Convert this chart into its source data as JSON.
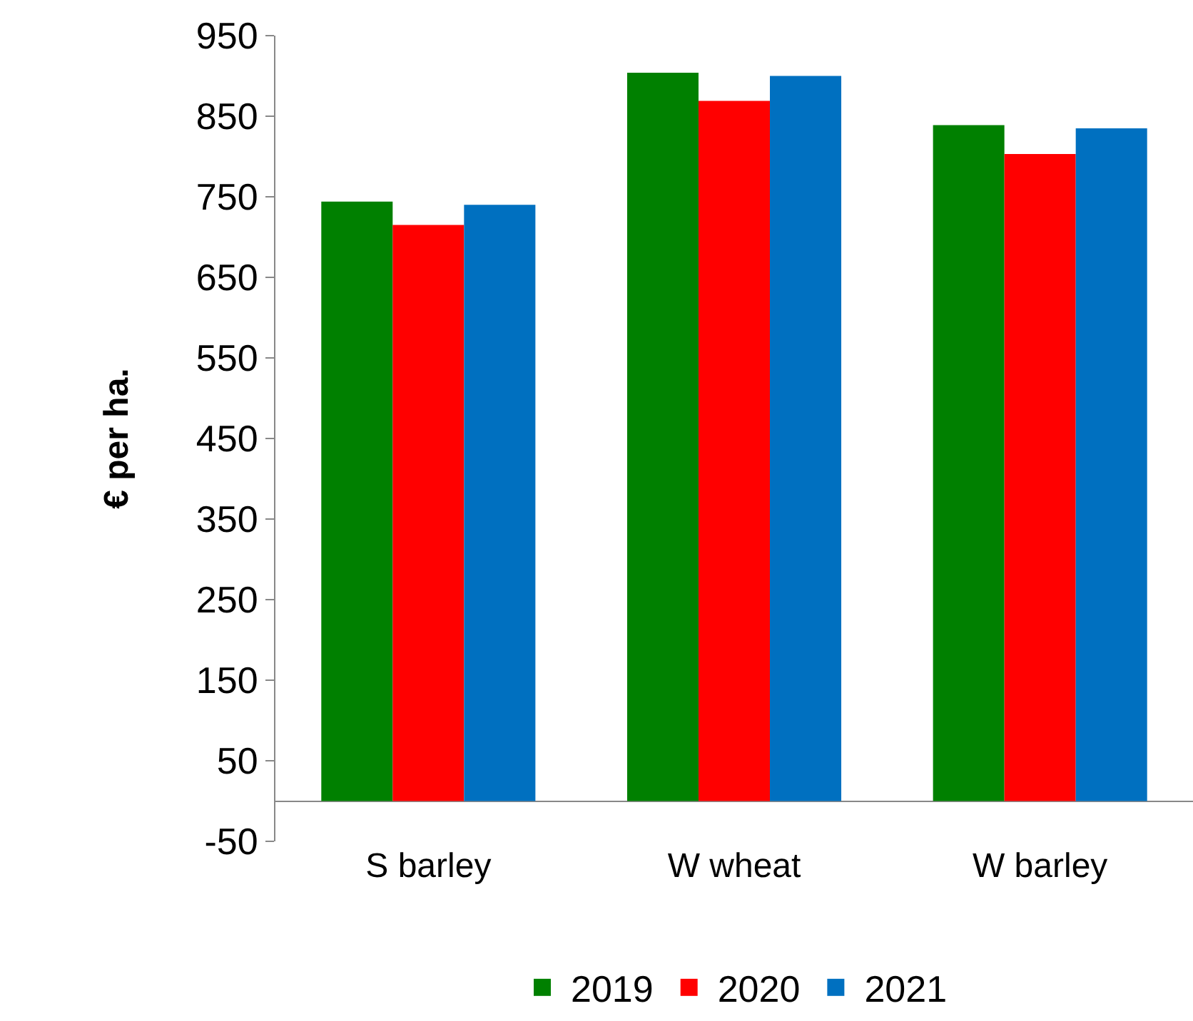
{
  "chart_data": {
    "type": "bar",
    "ylabel": "€ per ha.",
    "categories": [
      "S barley",
      "W wheat",
      "W barley"
    ],
    "series": [
      {
        "name": "2019",
        "color": "#008000",
        "values": [
          744,
          904,
          839
        ]
      },
      {
        "name": "2020",
        "color": "#ff0000",
        "values": [
          715,
          869,
          803
        ]
      },
      {
        "name": "2021",
        "color": "#0070c0",
        "values": [
          740,
          900,
          835
        ]
      }
    ],
    "ylim": [
      -50,
      950
    ],
    "yticks": [
      -50,
      50,
      150,
      250,
      350,
      450,
      550,
      650,
      750,
      850,
      950
    ],
    "grid": false,
    "legend": "bottom"
  }
}
